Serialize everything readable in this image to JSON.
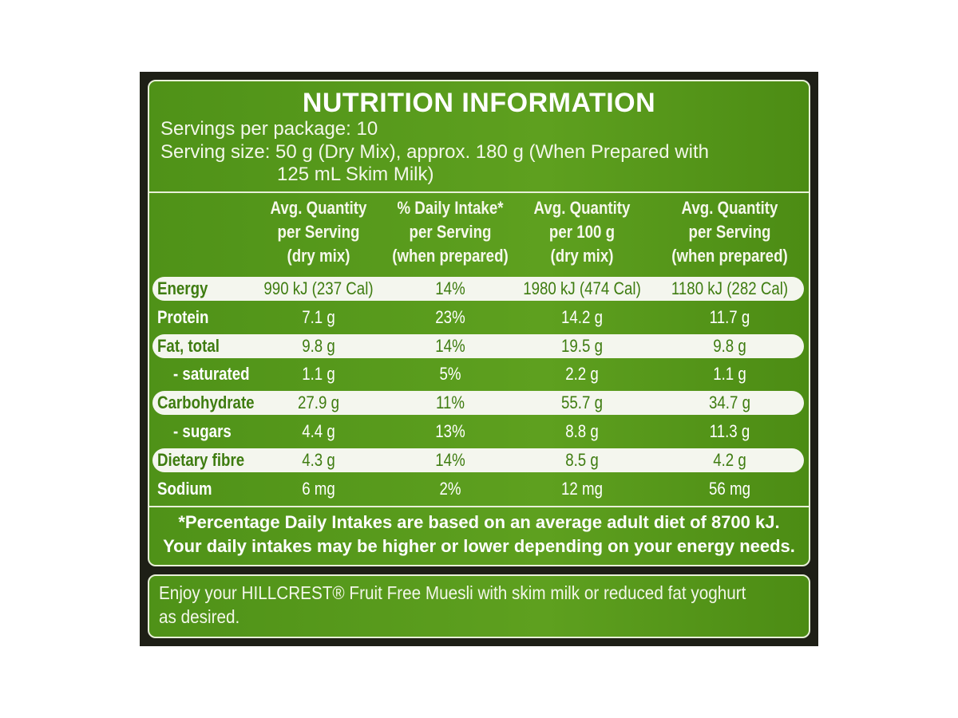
{
  "label": {
    "title": "NUTRITION INFORMATION",
    "servings_per_package": "Servings per package: 10",
    "serving_size": [
      "Serving size: 50 g (Dry Mix), approx. 180 g (When Prepared with",
      "125 mL Skim Milk)"
    ],
    "headers": [
      [
        "Avg. Quantity",
        "per Serving",
        "(dry mix)"
      ],
      [
        "% Daily Intake*",
        "per Serving",
        "(when prepared)"
      ],
      [
        "Avg. Quantity",
        "per 100 g",
        "(dry mix)"
      ],
      [
        "Avg. Quantity",
        "per Serving",
        "(when prepared)"
      ]
    ],
    "rows": [
      [
        "Energy",
        "990 kJ (237 Cal)",
        "14%",
        "1980 kJ (474 Cal)",
        "1180 kJ (282 Cal)"
      ],
      [
        "Protein",
        "7.1 g",
        "23%",
        "14.2 g",
        "11.7 g"
      ],
      [
        "Fat, total",
        "9.8 g",
        "14%",
        "19.5 g",
        "9.8 g"
      ],
      [
        "- saturated",
        "1.1 g",
        "5%",
        "2.2 g",
        "1.1 g"
      ],
      [
        "Carbohydrate",
        "27.9 g",
        "11%",
        "55.7 g",
        "34.7 g"
      ],
      [
        "- sugars",
        "4.4 g",
        "13%",
        "8.8 g",
        "11.3 g"
      ],
      [
        "Dietary fibre",
        "4.3 g",
        "14%",
        "8.5 g",
        "4.2 g"
      ],
      [
        "Sodium",
        "6 mg",
        "2%",
        "12 mg",
        "56 mg"
      ]
    ],
    "footnote": [
      "*Percentage Daily Intakes are based on an average adult diet of 8700 kJ.",
      "Your daily intakes may be higher or lower depending on your energy needs."
    ],
    "suggestion": [
      "Enjoy your HILLCREST® Fruit Free Muesli with skim milk or reduced fat yoghurt",
      "as desired."
    ]
  }
}
